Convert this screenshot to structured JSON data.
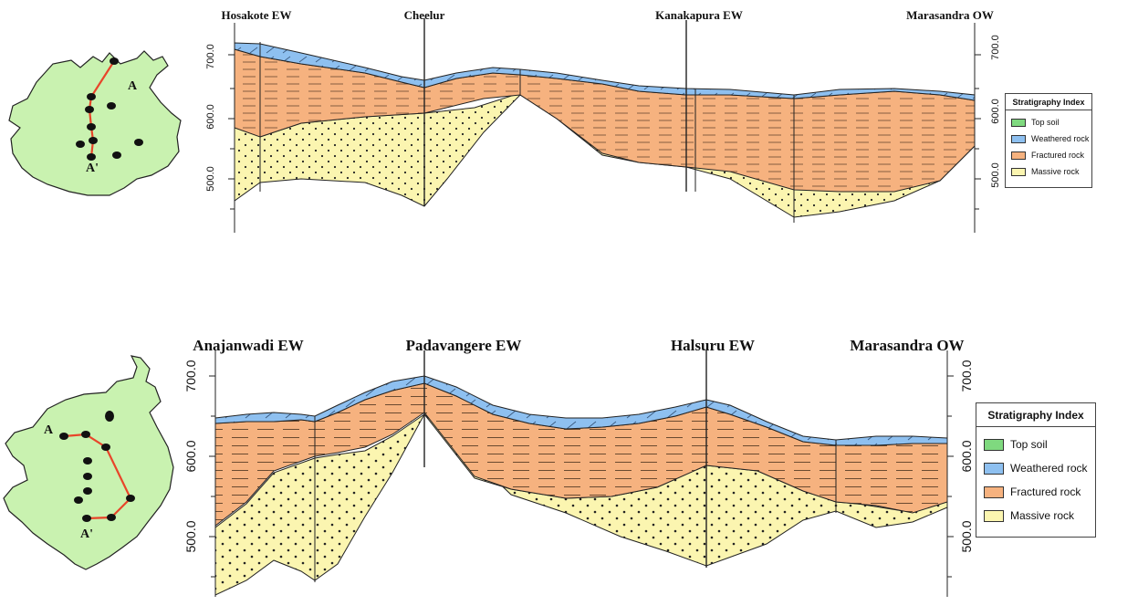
{
  "colors": {
    "top_soil": "#7fd97f",
    "weathered_rock": "#8ec0f0",
    "fractured_rock": "#f6b27f",
    "massive_rock": "#fbf5b0",
    "map_fill": "#c9f2b0",
    "profile_line": "#e8452a"
  },
  "sections": [
    {
      "wells": [
        "Hosakote EW",
        "Cheelur",
        "Kanakapura EW",
        "Marasandra OW"
      ],
      "axis_ticks_left": [
        "700.0",
        "600.0",
        "500.0"
      ],
      "axis_ticks_right": [
        "700.0",
        "600.0",
        "500.0"
      ],
      "map_labels": {
        "start": "A",
        "end": "A'"
      },
      "legend": {
        "title": "Stratigraphy Index",
        "items": [
          {
            "label": "Top soil",
            "icon": "top-soil-swatch"
          },
          {
            "label": "Weathered rock",
            "icon": "weathered-rock-swatch"
          },
          {
            "label": "Fractured rock",
            "icon": "fractured-rock-swatch"
          },
          {
            "label": "Massive rock",
            "icon": "massive-rock-swatch"
          }
        ]
      }
    },
    {
      "wells": [
        "Anajanwadi EW",
        "Padavangere EW",
        "Halsuru EW",
        "Marasandra OW"
      ],
      "axis_ticks_left": [
        "700.0",
        "600.0",
        "500.0"
      ],
      "axis_ticks_right": [
        "700.0",
        "600.0",
        "500.0"
      ],
      "map_labels": {
        "start": "A",
        "end": "A'"
      },
      "legend": {
        "title": "Stratigraphy Index",
        "items": [
          {
            "label": "Top soil",
            "icon": "top-soil-swatch"
          },
          {
            "label": "Weathered rock",
            "icon": "weathered-rock-swatch"
          },
          {
            "label": "Fractured rock",
            "icon": "fractured-rock-swatch"
          },
          {
            "label": "Massive rock",
            "icon": "massive-rock-swatch"
          }
        ]
      }
    }
  ]
}
